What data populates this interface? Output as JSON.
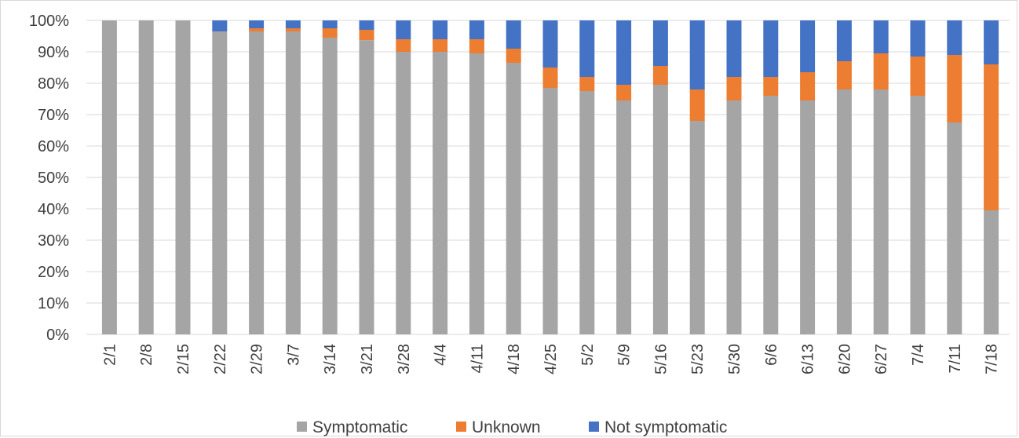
{
  "chart_data": {
    "type": "bar",
    "stacked": true,
    "percent_stacked": true,
    "categories": [
      "2/1",
      "2/8",
      "2/15",
      "2/22",
      "2/29",
      "3/7",
      "3/14",
      "3/21",
      "3/28",
      "4/4",
      "4/11",
      "4/18",
      "4/25",
      "5/2",
      "5/9",
      "5/16",
      "5/23",
      "5/30",
      "6/6",
      "6/13",
      "6/20",
      "6/27",
      "7/4",
      "7/11",
      "7/18"
    ],
    "series": [
      {
        "name": "Symptomatic",
        "color": "#a5a5a5",
        "values": [
          100,
          100,
          100,
          96.5,
          96.5,
          96.5,
          94.5,
          93.7,
          90,
          90,
          89.5,
          86.5,
          78.5,
          77.5,
          74.5,
          79.5,
          68,
          74.5,
          76,
          74.5,
          78,
          78,
          76,
          67.5,
          39.5
        ]
      },
      {
        "name": "Unknown",
        "color": "#ed7d31",
        "values": [
          0,
          0,
          0,
          0,
          1,
          1,
          3,
          3.3,
          4,
          4,
          4.5,
          4.5,
          6.5,
          4.5,
          5,
          6,
          10,
          7.5,
          6,
          9,
          9,
          11.5,
          12.5,
          21.5,
          46.5
        ]
      },
      {
        "name": "Not symptomatic",
        "color": "#4472c4",
        "values": [
          0,
          0,
          0,
          3.5,
          2.5,
          2.5,
          2.5,
          3,
          6,
          6,
          6,
          9,
          15,
          18,
          20.5,
          14.5,
          22,
          18,
          18,
          16.5,
          13,
          10.5,
          11.5,
          11,
          14
        ]
      }
    ],
    "y_ticks": [
      "0%",
      "10%",
      "20%",
      "30%",
      "40%",
      "50%",
      "60%",
      "70%",
      "80%",
      "90%",
      "100%"
    ],
    "ylim": [
      0,
      100
    ],
    "grid": true,
    "legend_position": "bottom",
    "title": "",
    "xlabel": "",
    "ylabel": ""
  }
}
